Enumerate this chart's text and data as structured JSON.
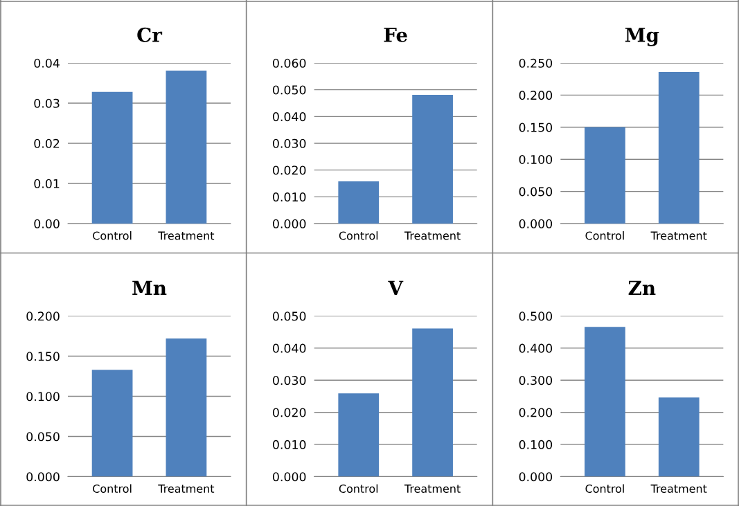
{
  "chart_data": [
    {
      "type": "bar",
      "title": "Cr",
      "categories": [
        "Control",
        "Treatment"
      ],
      "values": [
        0.0328,
        0.0381
      ],
      "color": "#4f81bd",
      "ylim": [
        0,
        0.04
      ],
      "yticks": [
        {
          "value": 0,
          "label": "0.00"
        },
        {
          "value": 0.01,
          "label": "0.01"
        },
        {
          "value": 0.02,
          "label": "0.02"
        },
        {
          "value": 0.03,
          "label": "0.03"
        },
        {
          "value": 0.04,
          "label": "0.04"
        }
      ],
      "grid": "y",
      "legend": false
    },
    {
      "type": "bar",
      "title": "Fe",
      "categories": [
        "Control",
        "Treatment"
      ],
      "values": [
        0.0158,
        0.0481
      ],
      "color": "#4f81bd",
      "ylim": [
        0,
        0.06
      ],
      "yticks": [
        {
          "value": 0,
          "label": "0.000"
        },
        {
          "value": 0.01,
          "label": "0.010"
        },
        {
          "value": 0.02,
          "label": "0.020"
        },
        {
          "value": 0.03,
          "label": "0.030"
        },
        {
          "value": 0.04,
          "label": "0.040"
        },
        {
          "value": 0.05,
          "label": "0.050"
        },
        {
          "value": 0.06,
          "label": "0.060"
        }
      ],
      "grid": "y",
      "legend": false
    },
    {
      "type": "bar",
      "title": "Mg",
      "categories": [
        "Control",
        "Treatment"
      ],
      "values": [
        0.15,
        0.236
      ],
      "color": "#4f81bd",
      "ylim": [
        0,
        0.25
      ],
      "yticks": [
        {
          "value": 0,
          "label": "0.000"
        },
        {
          "value": 0.05,
          "label": "0.050"
        },
        {
          "value": 0.1,
          "label": "0.100"
        },
        {
          "value": 0.15,
          "label": "0.150"
        },
        {
          "value": 0.2,
          "label": "0.200"
        },
        {
          "value": 0.25,
          "label": "0.250"
        }
      ],
      "grid": "y",
      "legend": false
    },
    {
      "type": "bar",
      "title": "Mn",
      "categories": [
        "Control",
        "Treatment"
      ],
      "values": [
        0.133,
        0.172
      ],
      "color": "#4f81bd",
      "ylim": [
        0,
        0.2
      ],
      "yticks": [
        {
          "value": 0,
          "label": "0.000"
        },
        {
          "value": 0.05,
          "label": "0.050"
        },
        {
          "value": 0.1,
          "label": "0.100"
        },
        {
          "value": 0.15,
          "label": "0.150"
        },
        {
          "value": 0.2,
          "label": "0.200"
        }
      ],
      "grid": "y",
      "legend": false
    },
    {
      "type": "bar",
      "title": "V",
      "categories": [
        "Control",
        "Treatment"
      ],
      "values": [
        0.0259,
        0.0461
      ],
      "color": "#4f81bd",
      "ylim": [
        0,
        0.05
      ],
      "yticks": [
        {
          "value": 0,
          "label": "0.000"
        },
        {
          "value": 0.01,
          "label": "0.010"
        },
        {
          "value": 0.02,
          "label": "0.020"
        },
        {
          "value": 0.03,
          "label": "0.030"
        },
        {
          "value": 0.04,
          "label": "0.040"
        },
        {
          "value": 0.05,
          "label": "0.050"
        }
      ],
      "grid": "y",
      "legend": false
    },
    {
      "type": "bar",
      "title": "Zn",
      "categories": [
        "Control",
        "Treatment"
      ],
      "values": [
        0.466,
        0.246
      ],
      "color": "#4f81bd",
      "ylim": [
        0,
        0.5
      ],
      "yticks": [
        {
          "value": 0,
          "label": "0.000"
        },
        {
          "value": 0.1,
          "label": "0.100"
        },
        {
          "value": 0.2,
          "label": "0.200"
        },
        {
          "value": 0.3,
          "label": "0.300"
        },
        {
          "value": 0.4,
          "label": "0.400"
        },
        {
          "value": 0.5,
          "label": "0.500"
        }
      ],
      "grid": "y",
      "legend": false
    }
  ]
}
